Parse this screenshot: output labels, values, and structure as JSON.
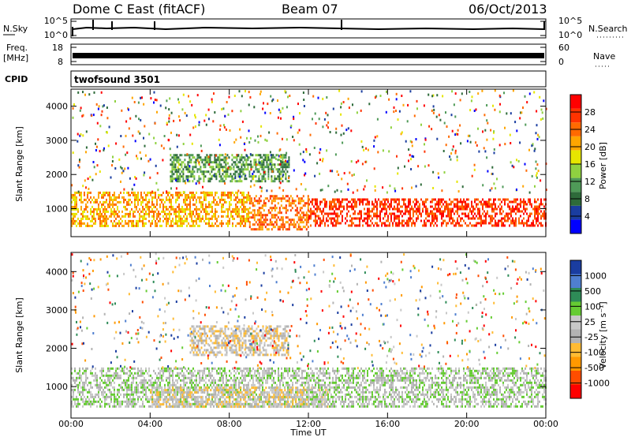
{
  "header": {
    "station": "Dome C East (fitACF)",
    "beam": "Beam 07",
    "date": "06/Oct/2013"
  },
  "panels": {
    "nsky": {
      "label": "N.Sky",
      "left_ticks": [
        "10^5",
        "10^0"
      ],
      "right_ticks": [
        "10^5",
        "10^0"
      ],
      "right_label": "N.Search"
    },
    "freq": {
      "label_line1": "Freq.",
      "label_line2": "[MHz]",
      "left_ticks": [
        "18",
        "8"
      ],
      "right_ticks": [
        "60",
        "0"
      ],
      "right_label": "Nave"
    },
    "cpid": {
      "label": "CPID",
      "text": "twofsound 3501"
    }
  },
  "colors": {
    "power_scale": [
      "#0000ff",
      "#1a3da0",
      "#2e6b3a",
      "#4f9a58",
      "#8fd140",
      "#e6e600",
      "#ffa500",
      "#ff6a00",
      "#ff3300",
      "#ff0000"
    ],
    "velocity_scale": [
      "#ff0000",
      "#ff4d00",
      "#ff9900",
      "#ffbb33",
      "#b3b3b3",
      "#c8c8c8",
      "#66cc33",
      "#2e8b57",
      "#4f7fd0",
      "#1a3da0"
    ],
    "ground_scatter": "#b0b0b0"
  },
  "x_axis": {
    "label": "Time UT",
    "ticks": [
      "00:00",
      "04:00",
      "08:00",
      "12:00",
      "16:00",
      "20:00",
      "00:00"
    ]
  },
  "power_panel": {
    "ylabel": "Slant Range [km]",
    "yticks": [
      "4000",
      "3000",
      "2000",
      "1000"
    ],
    "colorbar_label": "Power [dB]",
    "colorbar_ticks": [
      "28",
      "24",
      "20",
      "16",
      "12",
      "8",
      "4"
    ]
  },
  "velocity_panel": {
    "ylabel": "Slant Range [km]",
    "yticks": [
      "4000",
      "3000",
      "2000",
      "1000"
    ],
    "colorbar_label": "Velocity [m s⁻¹]",
    "colorbar_ticks": [
      "1000",
      "500",
      "100",
      "25",
      "-25",
      "-100",
      "-500",
      "-1000"
    ]
  },
  "chart_data": {
    "type": "heatmap",
    "title": "Dome C East (fitACF)   Beam 07   06/Oct/2013",
    "xlabel": "Time UT",
    "ylabel": "Slant Range [km]",
    "x_range_hours": [
      0,
      24
    ],
    "y_range_km": [
      180,
      4500
    ],
    "panels": [
      {
        "name": "Power",
        "units": "dB",
        "scale": [
          0,
          32
        ],
        "bands": [
          {
            "t_start": 0,
            "t_end": 9,
            "r_low": 500,
            "r_high": 1500,
            "level": 20
          },
          {
            "t_start": 9,
            "t_end": 12,
            "r_low": 400,
            "r_high": 1400,
            "level": 26
          },
          {
            "t_start": 12,
            "t_end": 24,
            "r_low": 500,
            "r_high": 1300,
            "level": 28
          },
          {
            "t_start": 5,
            "t_end": 11,
            "r_low": 1800,
            "r_high": 2600,
            "level": 10
          }
        ]
      },
      {
        "name": "Velocity",
        "units": "m s^-1",
        "scale": [
          -1000,
          1000
        ],
        "bands": [
          {
            "t_start": 0,
            "t_end": 12,
            "r_low": 500,
            "r_high": 1500,
            "level": 0
          },
          {
            "t_start": 4,
            "t_end": 13,
            "r_low": 500,
            "r_high": 1000,
            "level": -200
          },
          {
            "t_start": 6,
            "t_end": 11,
            "r_low": 1800,
            "r_high": 2600,
            "level": -150
          },
          {
            "t_start": 12,
            "t_end": 24,
            "r_low": 500,
            "r_high": 1500,
            "level": 150
          }
        ]
      }
    ]
  }
}
